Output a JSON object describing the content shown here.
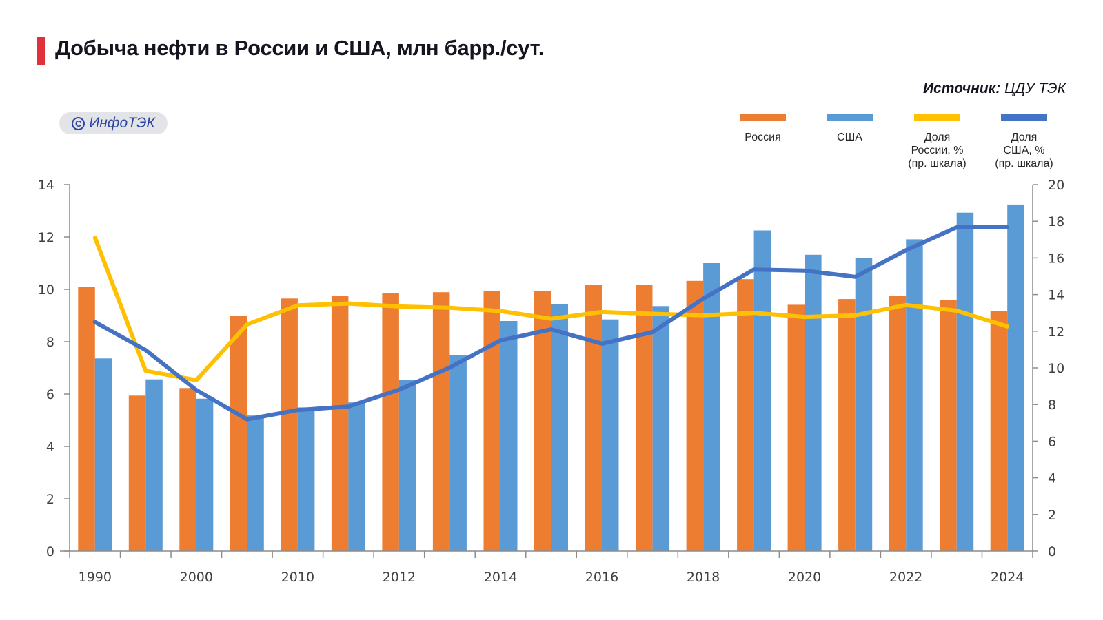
{
  "header": {
    "title": "Добыча нефти в России и США, млн барр./сут.",
    "source_label": "Источник:",
    "source_value": " ЦДУ ТЭК",
    "badge_text": "ИнфоТЭК",
    "badge_icon": "copyright-icon",
    "badge_icon_glyph": "C"
  },
  "colors": {
    "accent": "#e0313b",
    "russia": "#ed7d31",
    "usa": "#5b9bd5",
    "share_russia": "#ffc000",
    "share_usa": "#4472c4",
    "axis": "#8c8c8c",
    "text": "#404040"
  },
  "legend": [
    {
      "label": "Россия",
      "series": "russia"
    },
    {
      "label": "США",
      "series": "usa"
    },
    {
      "label": "Доля\nРоссии, %\n(пр. шкала)",
      "series": "share_russia"
    },
    {
      "label": "Доля\nСША, %\n(пр. шкала)",
      "series": "share_usa"
    }
  ],
  "chart_data": {
    "type": "bar",
    "title": "Добыча нефти в России и США, млн барр./сут.",
    "xlabel": "",
    "ylabel": "млн барр./сут.",
    "y2label": "%",
    "ylim": [
      0,
      14
    ],
    "y2lim": [
      0,
      20
    ],
    "yticks": [
      0,
      2,
      4,
      6,
      8,
      10,
      12,
      14
    ],
    "y2ticks": [
      0,
      2,
      4,
      6,
      8,
      10,
      12,
      14,
      16,
      18,
      20
    ],
    "grid": false,
    "legend_position": "top-right",
    "categories": [
      "1990",
      "1995",
      "2000",
      "2005",
      "2010",
      "2011",
      "2012",
      "2013",
      "2014",
      "2015",
      "2016",
      "2017",
      "2018",
      "2019",
      "2020",
      "2021",
      "2022",
      "2023",
      "2024"
    ],
    "tick_labels": [
      "1990",
      "",
      "2000",
      "",
      "2010",
      "",
      "2012",
      "",
      "2014",
      "",
      "2016",
      "",
      "2018",
      "",
      "2020",
      "",
      "2022",
      "",
      "2024"
    ],
    "series": [
      {
        "name": "Россия",
        "key": "russia",
        "type": "bar",
        "axis": "left",
        "values": [
          10.09,
          5.94,
          6.23,
          9.0,
          9.65,
          9.75,
          9.86,
          9.89,
          9.93,
          9.94,
          10.18,
          10.17,
          10.32,
          10.39,
          9.41,
          9.63,
          9.75,
          9.58,
          9.17
        ]
      },
      {
        "name": "США",
        "key": "usa",
        "type": "bar",
        "axis": "left",
        "values": [
          7.36,
          6.56,
          5.82,
          5.18,
          5.49,
          5.68,
          6.53,
          7.5,
          8.79,
          9.44,
          8.85,
          9.36,
          11.0,
          12.25,
          11.32,
          11.2,
          11.91,
          12.93,
          13.24
        ]
      },
      {
        "name": "Доля России, % (пр. шкала)",
        "key": "share_russia",
        "type": "line",
        "axis": "right",
        "values": [
          17.1,
          9.84,
          9.33,
          12.37,
          13.41,
          13.51,
          13.35,
          13.28,
          13.1,
          12.68,
          13.05,
          12.95,
          12.87,
          13.0,
          12.78,
          12.87,
          13.43,
          13.12,
          12.26
        ]
      },
      {
        "name": "Доля США, % (пр. шкала)",
        "key": "share_usa",
        "type": "line",
        "axis": "right",
        "values": [
          12.5,
          10.97,
          8.79,
          7.19,
          7.7,
          7.89,
          8.81,
          10.02,
          11.5,
          12.1,
          11.32,
          11.95,
          13.78,
          15.37,
          15.31,
          14.97,
          16.42,
          17.67,
          17.67
        ]
      }
    ]
  }
}
